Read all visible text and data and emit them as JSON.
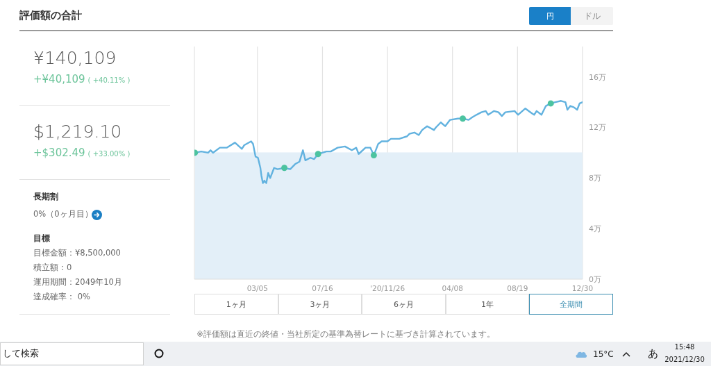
{
  "chart_data": {
    "type": "line",
    "title": "評価額の合計",
    "xlim": [
      "2019-10-28",
      "2021-12-30"
    ],
    "xticks": [
      {
        "value": "2020-03-05",
        "label": "03/05"
      },
      {
        "value": "2020-07-16",
        "label": "07/16"
      },
      {
        "value": "2020-11-26",
        "label": "'20/11/26"
      },
      {
        "value": "2021-04-08",
        "label": "04/08"
      },
      {
        "value": "2021-08-19",
        "label": "08/19"
      },
      {
        "value": "2021-12-30",
        "label": "12/30"
      }
    ],
    "ylim": [
      0,
      18.4
    ],
    "yticks": [
      {
        "value": 0,
        "label": "0万"
      },
      {
        "value": 4,
        "label": "4万"
      },
      {
        "value": 8,
        "label": "8万"
      },
      {
        "value": 12,
        "label": "12万"
      },
      {
        "value": 16,
        "label": "16万"
      }
    ],
    "grid": "x",
    "series": [
      {
        "type": "area",
        "color": "#e3eff8",
        "x": [
          "2019-10-29",
          "2021-12-30"
        ],
        "values": [
          10,
          10
        ]
      },
      {
        "color": "#62b2df",
        "x": [
          "2019-10-29",
          "2019-11-11",
          "2019-11-25",
          "2019-11-30",
          "2019-12-05",
          "2019-12-19",
          "2020-01-02",
          "2020-01-19",
          "2020-02-02",
          "2020-02-07",
          "2020-02-21",
          "2020-02-25",
          "2020-03-01",
          "2020-03-06",
          "2020-03-11",
          "2020-03-13",
          "2020-03-16",
          "2020-03-19",
          "2020-03-23",
          "2020-03-27",
          "2020-03-31",
          "2020-04-08",
          "2020-04-15",
          "2020-04-29",
          "2020-05-11",
          "2020-05-21",
          "2020-05-30",
          "2020-06-06",
          "2020-06-11",
          "2020-06-21",
          "2020-06-29",
          "2020-07-07",
          "2020-07-24",
          "2020-08-02",
          "2020-08-16",
          "2020-08-31",
          "2020-09-14",
          "2020-09-23",
          "2020-09-28",
          "2020-10-12",
          "2020-10-22",
          "2020-10-29",
          "2020-11-07",
          "2020-11-14",
          "2020-11-26",
          "2020-12-03",
          "2020-12-10",
          "2020-12-20",
          "2021-01-05",
          "2021-01-10",
          "2021-01-20",
          "2021-01-29",
          "2021-02-05",
          "2021-02-15",
          "2021-03-01",
          "2021-03-05",
          "2021-03-15",
          "2021-03-24",
          "2021-04-03",
          "2021-04-19",
          "2021-04-29",
          "2021-05-11",
          "2021-05-18",
          "2021-05-27",
          "2021-06-06",
          "2021-06-15",
          "2021-06-20",
          "2021-07-02",
          "2021-07-11",
          "2021-07-18",
          "2021-07-25",
          "2021-08-13",
          "2021-08-20",
          "2021-09-04",
          "2021-09-18",
          "2021-09-22",
          "2021-09-27",
          "2021-10-07",
          "2021-10-16",
          "2021-10-26",
          "2021-11-04",
          "2021-11-16",
          "2021-11-25",
          "2021-11-29",
          "2021-12-05",
          "2021-12-12",
          "2021-12-19",
          "2021-12-24",
          "2021-12-30"
        ],
        "values": [
          10.0,
          10.1,
          10.0,
          10.2,
          10.0,
          10.4,
          10.4,
          10.8,
          10.3,
          10.6,
          10.9,
          10.7,
          9.7,
          9.6,
          8.8,
          8.2,
          7.6,
          7.8,
          7.6,
          8.4,
          8.0,
          8.8,
          8.7,
          8.8,
          8.7,
          9.1,
          9.3,
          10.2,
          9.4,
          9.6,
          9.5,
          9.9,
          10.1,
          10.1,
          10.4,
          10.5,
          10.2,
          10.4,
          9.9,
          10.4,
          10.4,
          9.8,
          10.7,
          10.9,
          10.9,
          11.1,
          11.1,
          11.1,
          11.3,
          11.5,
          11.6,
          11.4,
          11.8,
          12.1,
          11.8,
          12.0,
          12.4,
          12.1,
          12.6,
          12.7,
          12.7,
          12.6,
          12.8,
          13.0,
          13.2,
          13.3,
          13.0,
          13.3,
          13.2,
          12.9,
          13.2,
          13.3,
          13.0,
          13.5,
          13.1,
          13.0,
          13.3,
          13.0,
          13.7,
          13.9,
          14.0,
          14.1,
          14.0,
          13.4,
          13.7,
          13.6,
          13.4,
          13.9,
          14.0
        ]
      },
      {
        "type": "scatter",
        "color": "#4cc3a0",
        "marker": "circle",
        "x": [
          "2019-10-29",
          "2020-04-29",
          "2020-07-07",
          "2020-10-29",
          "2021-04-29",
          "2021-10-26"
        ],
        "values": [
          10.0,
          8.8,
          9.9,
          9.8,
          12.7,
          13.9
        ]
      }
    ],
    "annotations": [
      "円",
      "ドル",
      "¥140,109",
      "+¥40,109",
      "( +40.11% )",
      "$1,219.10",
      "+$302.49",
      "( +33.00% )",
      "長期割",
      "0%（0ヶ月目）",
      "目標",
      "目標金額：¥8,500,000",
      "積立額：0",
      "運用期間：2049年10月",
      "達成確率： 0%",
      "1ヶ月",
      "3ヶ月",
      "6ヶ月",
      "1年",
      "全期間",
      "※評価額は直近の終値・当社所定の基準為替レートに基づき計算されています。",
      "して検索",
      "15°C",
      "あ",
      "15:48",
      "2021/12/30"
    ]
  }
}
